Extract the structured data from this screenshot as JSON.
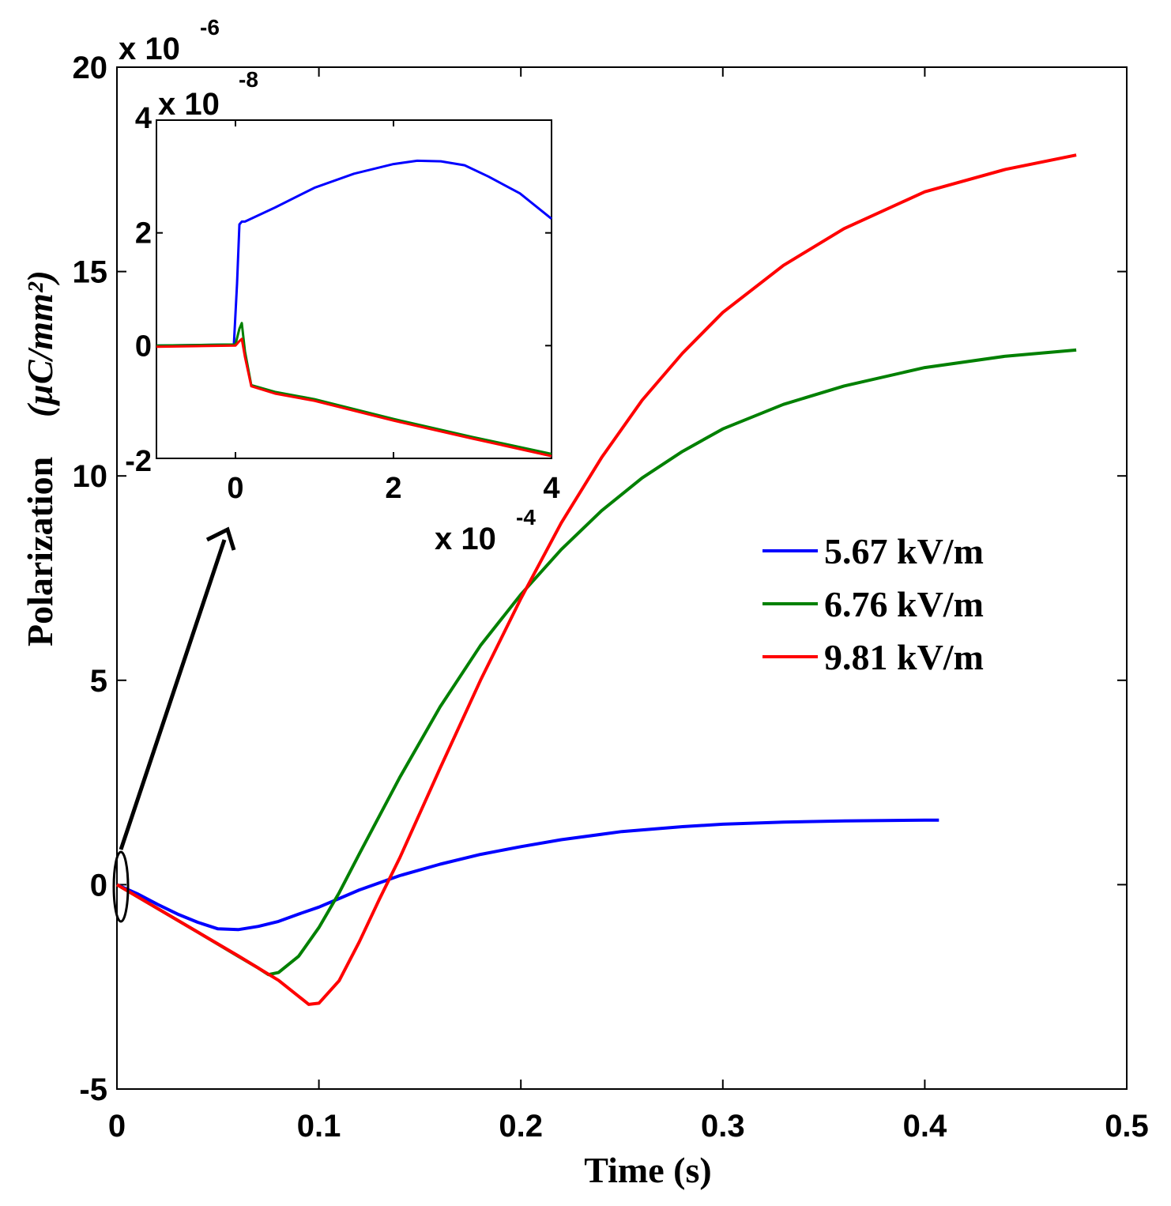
{
  "chart_data": [
    {
      "type": "line",
      "xlabel": "Time (s)",
      "ylabel": "Polarization",
      "ylabel_unit": "(µC/mm²)",
      "xlim": [
        0,
        0.5
      ],
      "ylim": [
        -5,
        20
      ],
      "xticks": [
        "0",
        "0.1",
        "0.2",
        "0.3",
        "0.4",
        "0.5"
      ],
      "yticks": [
        "-5",
        "0",
        "5",
        "10",
        "15",
        "20"
      ],
      "y_multiplier": "x 10",
      "y_multiplier_exp": "-6",
      "legend_position": "center-right",
      "series": [
        {
          "name": "5.67 kV/m",
          "color": "#0000ff",
          "x": [
            0,
            0.01,
            0.02,
            0.03,
            0.04,
            0.05,
            0.06,
            0.07,
            0.08,
            0.09,
            0.1,
            0.11,
            0.12,
            0.14,
            0.16,
            0.18,
            0.2,
            0.22,
            0.25,
            0.28,
            0.3,
            0.33,
            0.36,
            0.4,
            0.407
          ],
          "y": [
            0,
            -0.22,
            -0.48,
            -0.72,
            -0.92,
            -1.08,
            -1.1,
            -1.02,
            -0.9,
            -0.72,
            -0.55,
            -0.34,
            -0.13,
            0.22,
            0.5,
            0.74,
            0.93,
            1.1,
            1.3,
            1.42,
            1.48,
            1.53,
            1.56,
            1.58,
            1.58
          ]
        },
        {
          "name": "6.76 kV/m",
          "color": "#008000",
          "x": [
            0,
            0.02,
            0.04,
            0.06,
            0.07,
            0.075,
            0.08,
            0.09,
            0.1,
            0.11,
            0.12,
            0.14,
            0.16,
            0.18,
            0.2,
            0.22,
            0.24,
            0.26,
            0.28,
            0.3,
            0.33,
            0.36,
            0.4,
            0.44,
            0.475
          ],
          "y": [
            0,
            -0.58,
            -1.16,
            -1.75,
            -2.04,
            -2.2,
            -2.15,
            -1.75,
            -1.05,
            -0.2,
            0.75,
            2.62,
            4.35,
            5.85,
            7.1,
            8.2,
            9.15,
            9.95,
            10.6,
            11.15,
            11.75,
            12.2,
            12.65,
            12.93,
            13.08
          ]
        },
        {
          "name": "9.81 kV/m",
          "color": "#ff0000",
          "x": [
            0,
            0.02,
            0.04,
            0.06,
            0.08,
            0.095,
            0.1,
            0.11,
            0.12,
            0.13,
            0.14,
            0.16,
            0.18,
            0.2,
            0.22,
            0.24,
            0.26,
            0.28,
            0.3,
            0.33,
            0.36,
            0.4,
            0.44,
            0.475
          ],
          "y": [
            0,
            -0.58,
            -1.16,
            -1.74,
            -2.34,
            -2.93,
            -2.9,
            -2.35,
            -1.4,
            -0.35,
            0.65,
            2.85,
            5.0,
            7.0,
            8.85,
            10.45,
            11.85,
            13.0,
            14.0,
            15.15,
            16.05,
            16.95,
            17.5,
            17.85
          ]
        }
      ]
    },
    {
      "type": "line",
      "role": "inset",
      "xlim": [
        -1,
        4
      ],
      "ylim": [
        -2,
        4
      ],
      "xticks": [
        "0",
        "2",
        "4"
      ],
      "yticks": [
        "-2",
        "0",
        "2",
        "4"
      ],
      "x_multiplier": "x 10",
      "x_multiplier_exp": "-4",
      "y_multiplier": "x 10",
      "y_multiplier_exp": "-8",
      "series": [
        {
          "name": "5.67 kV/m",
          "color": "#0000ff",
          "x": [
            -1,
            -0.5,
            -0.02,
            0.02,
            0.05,
            0.08,
            0.12,
            0.5,
            1.0,
            1.5,
            2.0,
            2.3,
            2.6,
            2.9,
            3.2,
            3.6,
            4.0
          ],
          "y": [
            0.0,
            0.01,
            0.02,
            1.1,
            2.15,
            2.2,
            2.2,
            2.45,
            2.8,
            3.05,
            3.22,
            3.28,
            3.27,
            3.2,
            3.0,
            2.7,
            2.25
          ]
        },
        {
          "name": "6.76 kV/m",
          "color": "#008000",
          "x": [
            -1,
            -0.5,
            0.0,
            0.05,
            0.08,
            0.12,
            0.2,
            0.5,
            1.0,
            2.0,
            3.0,
            4.0
          ],
          "y": [
            0.0,
            0.01,
            0.02,
            0.3,
            0.4,
            -0.1,
            -0.7,
            -0.82,
            -0.95,
            -1.3,
            -1.62,
            -1.92
          ]
        },
        {
          "name": "9.81 kV/m",
          "color": "#ff0000",
          "x": [
            -1,
            -0.5,
            0.0,
            0.05,
            0.08,
            0.12,
            0.2,
            0.5,
            1.0,
            2.0,
            3.0,
            4.0
          ],
          "y": [
            -0.02,
            -0.01,
            0.0,
            0.08,
            0.12,
            -0.2,
            -0.72,
            -0.85,
            -0.98,
            -1.33,
            -1.65,
            -1.96
          ]
        }
      ]
    }
  ],
  "legend": {
    "entries": [
      {
        "label": "5.67 kV/m",
        "color": "#0000ff"
      },
      {
        "label": "6.76 kV/m",
        "color": "#008000"
      },
      {
        "label": "9.81 kV/m",
        "color": "#ff0000"
      }
    ]
  },
  "annotation": {
    "arrow": "zoom-in indicator from origin region to inset",
    "ellipse": "marks origin region"
  }
}
